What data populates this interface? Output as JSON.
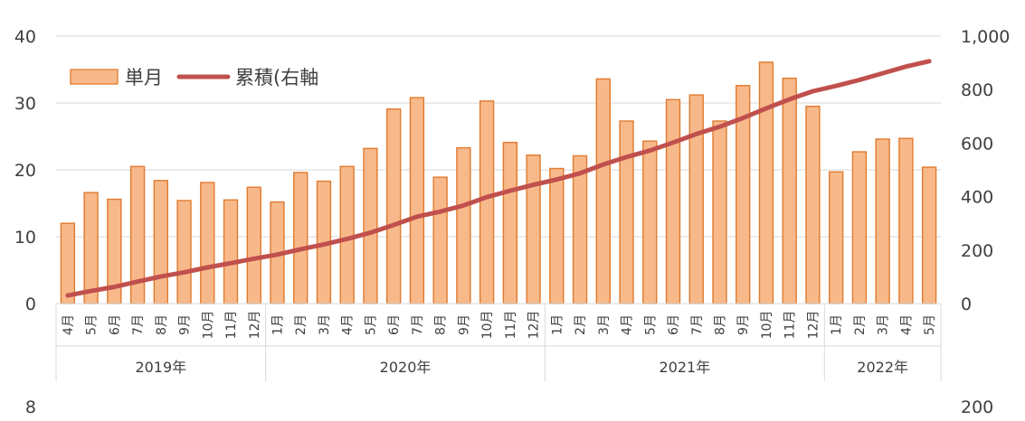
{
  "chart_data": [
    {
      "type": "bar",
      "title": "",
      "xlabel": "",
      "ylabel": "",
      "y2label": "",
      "ylim": [
        0,
        40
      ],
      "y2lim": [
        0,
        1000
      ],
      "yticks": [
        "0",
        "10",
        "20",
        "30",
        "40"
      ],
      "y2ticks": [
        "0",
        "200",
        "400",
        "600",
        "800",
        "1,000"
      ],
      "grid": true,
      "legend": {
        "position": "top-left",
        "entries": [
          "単月",
          "累積(右軸"
        ]
      },
      "categories": [
        "4月",
        "5月",
        "6月",
        "7月",
        "8月",
        "9月",
        "10月",
        "11月",
        "12月",
        "1月",
        "2月",
        "3月",
        "4月",
        "5月",
        "6月",
        "7月",
        "8月",
        "9月",
        "10月",
        "11月",
        "12月",
        "1月",
        "2月",
        "3月",
        "4月",
        "5月",
        "6月",
        "7月",
        "8月",
        "9月",
        "10月",
        "11月",
        "12月",
        "1月",
        "2月",
        "3月",
        "4月",
        "5月"
      ],
      "groups": [
        {
          "label": "2019年",
          "count": 9
        },
        {
          "label": "2020年",
          "count": 12
        },
        {
          "label": "2021年",
          "count": 12
        },
        {
          "label": "2022年",
          "count": 5
        }
      ],
      "series": [
        {
          "name": "単月",
          "type": "bar",
          "axis": "left",
          "color": "#F8B98A",
          "edge_color": "#E07A2E",
          "values": [
            12.0,
            16.6,
            15.6,
            20.5,
            18.4,
            15.4,
            18.1,
            15.5,
            17.4,
            15.2,
            19.6,
            18.3,
            20.5,
            23.2,
            29.1,
            30.8,
            18.9,
            23.3,
            30.3,
            24.1,
            22.2,
            20.2,
            22.1,
            33.6,
            27.3,
            24.3,
            30.5,
            31.2,
            27.3,
            32.6,
            36.1,
            33.7,
            29.5,
            19.7,
            22.7,
            24.6,
            24.7,
            20.4
          ]
        },
        {
          "name": "累積(右軸",
          "type": "line",
          "axis": "right",
          "color": "#C0504D",
          "values": [
            30,
            47,
            62,
            82,
            101,
            117,
            135,
            151,
            168,
            183,
            203,
            221,
            242,
            265,
            294,
            325,
            344,
            367,
            398,
            422,
            444,
            464,
            487,
            520,
            548,
            572,
            602,
            634,
            661,
            694,
            730,
            764,
            794,
            814,
            836,
            861,
            886,
            906
          ]
        }
      ]
    },
    {
      "type": "bar",
      "title": "",
      "yticks": [
        "8"
      ],
      "y2ticks": [
        "200"
      ],
      "note": "second chart cut off at bottom edge"
    }
  ]
}
